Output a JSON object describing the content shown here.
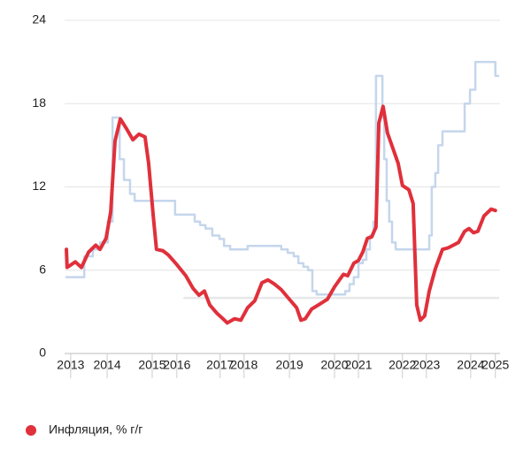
{
  "chart_data": {
    "type": "line",
    "xlim": [
      2012.95,
      2025.13
    ],
    "ylim": [
      0,
      24
    ],
    "yticks": [
      0,
      6,
      12,
      18,
      24
    ],
    "grid": true,
    "xticks": [
      {
        "value": 2013.12,
        "label": "2013"
      },
      {
        "value": 2014.14,
        "label": "2014"
      },
      {
        "value": 2015.4,
        "label": "2015"
      },
      {
        "value": 2016.09,
        "label": "2016"
      },
      {
        "value": 2017.3,
        "label": "2017"
      },
      {
        "value": 2017.97,
        "label": "2018"
      },
      {
        "value": 2019.24,
        "label": "2019"
      },
      {
        "value": 2020.5,
        "label": "2020"
      },
      {
        "value": 2021.17,
        "label": "2021"
      },
      {
        "value": 2022.4,
        "label": "2022"
      },
      {
        "value": 2023.07,
        "label": "2023"
      },
      {
        "value": 2024.31,
        "label": "2024"
      },
      {
        "value": 2025.0,
        "label": "2025"
      }
    ],
    "legend": "bottom-left",
    "series": [
      {
        "color": "#e6e8ea",
        "step": false,
        "x": [
          2016.3,
          2025.08
        ],
        "values": [
          4,
          4
        ]
      },
      {
        "color": "#c5d6ec",
        "step": true,
        "x": [
          2013.0,
          2013.5,
          2013.74,
          2013.94,
          2014.16,
          2014.29,
          2014.49,
          2014.61,
          2014.78,
          2014.91,
          2016.04,
          2016.59,
          2016.74,
          2016.89,
          2017.08,
          2017.28,
          2017.41,
          2017.58,
          2018.07,
          2019.01,
          2019.19,
          2019.36,
          2019.49,
          2019.63,
          2019.76,
          2019.88,
          2020.0,
          2020.8,
          2020.92,
          2021.04,
          2021.17,
          2021.29,
          2021.39,
          2021.49,
          2021.59,
          2021.66,
          2021.84,
          2021.89,
          2021.96,
          2022.03,
          2022.11,
          2022.21,
          2023.15,
          2023.22,
          2023.32,
          2023.4,
          2023.52,
          2024.14,
          2024.29,
          2024.44,
          2025.0,
          2025.08
        ],
        "values": [
          5.5,
          7,
          7.5,
          8,
          9.5,
          17,
          14,
          12.5,
          11.5,
          11,
          10,
          9.5,
          9.25,
          9,
          8.5,
          8.25,
          7.75,
          7.5,
          7.75,
          7.5,
          7.25,
          7,
          6.5,
          6.25,
          6,
          4.5,
          4.25,
          4.5,
          5,
          5.5,
          6.5,
          6.75,
          7.5,
          8.5,
          9.5,
          20,
          17,
          14,
          11,
          9.5,
          8,
          7.5,
          8.5,
          12,
          13,
          15,
          16,
          18,
          19,
          21,
          20,
          20
        ]
      },
      {
        "name": "Инфляция, % г/г",
        "color": "#e0303b",
        "step": false,
        "x": [
          2013.0,
          2013.02,
          2013.25,
          2013.42,
          2013.62,
          2013.82,
          2013.94,
          2014.11,
          2014.24,
          2014.36,
          2014.51,
          2014.68,
          2014.86,
          2015.03,
          2015.2,
          2015.3,
          2015.43,
          2015.52,
          2015.7,
          2015.85,
          2016.09,
          2016.34,
          2016.54,
          2016.71,
          2016.86,
          2017.01,
          2017.21,
          2017.38,
          2017.5,
          2017.7,
          2017.88,
          2018.07,
          2018.27,
          2018.47,
          2018.64,
          2018.82,
          2019.01,
          2019.24,
          2019.44,
          2019.56,
          2019.68,
          2019.86,
          2020.05,
          2020.3,
          2020.5,
          2020.75,
          2020.87,
          2021.04,
          2021.17,
          2021.29,
          2021.42,
          2021.54,
          2021.66,
          2021.74,
          2021.86,
          2021.98,
          2022.13,
          2022.28,
          2022.4,
          2022.58,
          2022.7,
          2022.8,
          2022.9,
          2023.02,
          2023.15,
          2023.32,
          2023.52,
          2023.67,
          2023.82,
          2023.97,
          2024.14,
          2024.26,
          2024.39,
          2024.51,
          2024.68,
          2024.88,
          2025.0
        ],
        "values": [
          7.5,
          6.2,
          6.6,
          6.2,
          7.3,
          7.8,
          7.5,
          8.3,
          10.2,
          15.3,
          16.9,
          16.2,
          15.4,
          15.8,
          15.6,
          13.7,
          9.9,
          7.5,
          7.4,
          7.1,
          6.4,
          5.6,
          4.7,
          4.2,
          4.5,
          3.5,
          2.9,
          2.5,
          2.2,
          2.5,
          2.4,
          3.3,
          3.8,
          5.1,
          5.3,
          5.0,
          4.6,
          3.9,
          3.3,
          2.4,
          2.5,
          3.2,
          3.5,
          3.9,
          4.8,
          5.7,
          5.6,
          6.5,
          6.7,
          7.3,
          8.3,
          8.4,
          9.1,
          16.6,
          17.8,
          15.9,
          14.8,
          13.7,
          12.1,
          11.8,
          10.8,
          3.5,
          2.4,
          2.7,
          4.5,
          6.1,
          7.5,
          7.6,
          7.8,
          8.0,
          8.8,
          9.0,
          8.7,
          8.8,
          9.9,
          10.4,
          10.3
        ]
      }
    ]
  }
}
